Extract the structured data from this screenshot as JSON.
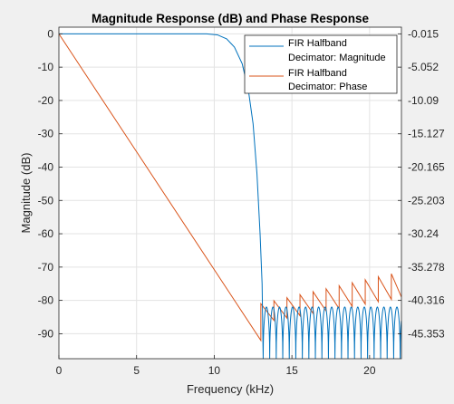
{
  "chart_data": {
    "type": "line",
    "title": "Magnitude Response (dB) and Phase Response",
    "xlabel": "Frequency (kHz)",
    "ylabel": "Magnitude (dB)",
    "xlim": [
      0,
      22.05
    ],
    "ylim": [
      -97.5,
      2
    ],
    "x_ticks": [
      "0",
      "5",
      "10",
      "15",
      "20"
    ],
    "x_tick_values": [
      0,
      5,
      10,
      15,
      20
    ],
    "y_ticks": [
      "0",
      "-10",
      "-20",
      "-30",
      "-40",
      "-50",
      "-60",
      "-70",
      "-80",
      "-90"
    ],
    "y_tick_values": [
      0,
      -10,
      -20,
      -30,
      -40,
      -50,
      -60,
      -70,
      -80,
      -90
    ],
    "right_ticks": [
      "-0.015",
      "-5.052",
      "-10.09",
      "-15.127",
      "-20.165",
      "-25.203",
      "-30.24",
      "-35.278",
      "-40.316",
      "-45.353"
    ],
    "grid": true,
    "legend_position": "top-right",
    "series": [
      {
        "name": "FIR Halfband Decimator: Magnitude",
        "color": "#0072bd",
        "points": [
          [
            0,
            0
          ],
          [
            9.5,
            0
          ],
          [
            10.2,
            -0.3
          ],
          [
            10.8,
            -1.5
          ],
          [
            11.3,
            -4
          ],
          [
            11.8,
            -9
          ],
          [
            12.2,
            -17
          ],
          [
            12.5,
            -27
          ],
          [
            12.75,
            -42
          ],
          [
            12.95,
            -60
          ],
          [
            13.08,
            -75
          ],
          [
            13.15,
            -97.5
          ]
        ],
        "stopband": {
          "x_start": 13.15,
          "x_end": 22.05,
          "lobe_width": 0.42,
          "lobe_top": -82,
          "null": -97.5
        }
      },
      {
        "name": "FIR Halfband Decimator: Phase",
        "color": "#d95319",
        "points": [
          [
            0,
            0
          ],
          [
            13.0,
            -92
          ]
        ],
        "stopband": {
          "x_start": 13.0,
          "x_end": 22.05,
          "tooth_width": 0.84,
          "low_start": -86,
          "low_end": -79,
          "high_start": -81,
          "high_end": -72
        }
      }
    ],
    "legend_labels": [
      [
        "FIR Halfband",
        "Decimator: Magnitude"
      ],
      [
        "FIR Halfband",
        "Decimator: Phase"
      ]
    ]
  }
}
